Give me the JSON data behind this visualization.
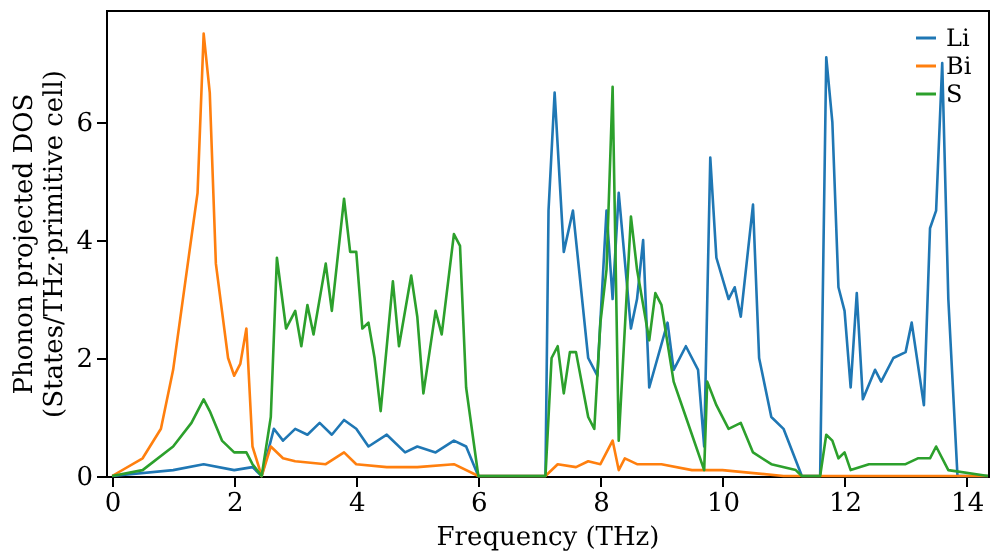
{
  "chart_data": {
    "type": "line",
    "xlabel": "Frequency (THz)",
    "ylabel": "Phonon projected DOS\n(States/THz·primitive cell)",
    "xlim": [
      -0.1,
      14.35
    ],
    "xticks": [
      0,
      2,
      4,
      6,
      8,
      10,
      12,
      14
    ],
    "ylim": [
      0,
      7.9
    ],
    "yticks": [
      0,
      2,
      4,
      6
    ],
    "grid": false,
    "legend": "top right",
    "marker": "none",
    "line_style": "solid",
    "series": [
      {
        "name": "Li",
        "color": "#1f77b4",
        "x": [
          0,
          1,
          1.5,
          2,
          2.3,
          2.45,
          2.65,
          2.8,
          3,
          3.2,
          3.4,
          3.6,
          3.8,
          4,
          4.2,
          4.5,
          4.8,
          5,
          5.3,
          5.6,
          5.8,
          6,
          7.1,
          7.15,
          7.25,
          7.4,
          7.55,
          7.8,
          7.95,
          8.1,
          8.2,
          8.3,
          8.5,
          8.6,
          8.7,
          8.8,
          9.1,
          9.2,
          9.4,
          9.6,
          9.7,
          9.8,
          9.9,
          10.1,
          10.2,
          10.3,
          10.5,
          10.6,
          10.8,
          11.0,
          11.3,
          11.6,
          11.7,
          11.8,
          11.9,
          12.0,
          12.1,
          12.2,
          12.3,
          12.5,
          12.6,
          12.8,
          13.0,
          13.1,
          13.3,
          13.4,
          13.5,
          13.6,
          13.7,
          13.85,
          14.35
        ],
        "values": [
          0,
          0.1,
          0.2,
          0.1,
          0.15,
          0,
          0.8,
          0.6,
          0.8,
          0.7,
          0.9,
          0.7,
          0.95,
          0.8,
          0.5,
          0.7,
          0.4,
          0.5,
          0.4,
          0.6,
          0.5,
          0,
          0,
          4.5,
          6.5,
          3.8,
          4.5,
          2.0,
          1.7,
          4.5,
          3.0,
          4.8,
          2.5,
          3.0,
          4.0,
          1.5,
          2.6,
          1.8,
          2.2,
          1.8,
          0.5,
          5.4,
          3.7,
          3.0,
          3.2,
          2.7,
          4.6,
          2.0,
          1.0,
          0.8,
          0,
          0,
          7.1,
          6.0,
          3.2,
          2.8,
          1.5,
          3.1,
          1.3,
          1.8,
          1.6,
          2.0,
          2.1,
          2.6,
          1.2,
          4.2,
          4.5,
          7.0,
          3.0,
          0,
          0
        ]
      },
      {
        "name": "Bi",
        "color": "#ff7f0e",
        "x": [
          0,
          0.5,
          0.8,
          1,
          1.2,
          1.4,
          1.5,
          1.6,
          1.7,
          1.8,
          1.9,
          2.0,
          2.1,
          2.2,
          2.3,
          2.45,
          2.6,
          2.8,
          3,
          3.5,
          3.8,
          4,
          4.5,
          5,
          5.6,
          6,
          7.1,
          7.3,
          7.6,
          7.8,
          8.0,
          8.2,
          8.3,
          8.4,
          8.6,
          9,
          9.5,
          10,
          11,
          14.35
        ],
        "values": [
          0,
          0.3,
          0.8,
          1.8,
          3.3,
          4.8,
          7.5,
          6.5,
          3.6,
          2.8,
          2.0,
          1.7,
          1.9,
          2.5,
          0.5,
          0,
          0.5,
          0.3,
          0.25,
          0.2,
          0.4,
          0.2,
          0.15,
          0.15,
          0.2,
          0,
          0,
          0.2,
          0.15,
          0.25,
          0.2,
          0.6,
          0.1,
          0.3,
          0.2,
          0.2,
          0.1,
          0.1,
          0,
          0
        ]
      },
      {
        "name": "S",
        "color": "#2ca02c",
        "x": [
          0,
          0.5,
          1,
          1.3,
          1.5,
          1.6,
          1.8,
          2.0,
          2.2,
          2.3,
          2.45,
          2.6,
          2.7,
          2.85,
          3.0,
          3.1,
          3.2,
          3.3,
          3.5,
          3.6,
          3.8,
          3.9,
          4.0,
          4.1,
          4.2,
          4.3,
          4.4,
          4.6,
          4.7,
          4.9,
          5.0,
          5.1,
          5.3,
          5.4,
          5.6,
          5.7,
          5.8,
          6.0,
          7.1,
          7.2,
          7.3,
          7.4,
          7.5,
          7.6,
          7.8,
          7.9,
          8.0,
          8.1,
          8.2,
          8.3,
          8.5,
          8.6,
          8.8,
          8.9,
          9.0,
          9.2,
          9.4,
          9.7,
          9.75,
          9.9,
          10.1,
          10.3,
          10.5,
          10.8,
          11.2,
          11.3,
          11.6,
          11.7,
          11.8,
          11.9,
          12.0,
          12.1,
          12.4,
          13,
          13.2,
          13.4,
          13.5,
          13.7,
          14.35
        ],
        "values": [
          0,
          0.1,
          0.5,
          0.9,
          1.3,
          1.1,
          0.6,
          0.4,
          0.4,
          0.2,
          0,
          1.0,
          3.7,
          2.5,
          2.8,
          2.2,
          2.9,
          2.4,
          3.6,
          2.8,
          4.7,
          3.8,
          3.8,
          2.5,
          2.6,
          2.0,
          1.1,
          3.3,
          2.2,
          3.4,
          2.7,
          1.4,
          2.8,
          2.4,
          4.1,
          3.9,
          1.5,
          0,
          0,
          2.0,
          2.2,
          1.4,
          2.1,
          2.1,
          1.0,
          0.8,
          2.6,
          3.5,
          6.6,
          0.6,
          4.4,
          3.5,
          2.3,
          3.1,
          2.9,
          1.6,
          1.0,
          0.1,
          1.6,
          1.2,
          0.8,
          0.9,
          0.4,
          0.2,
          0.1,
          0,
          0,
          0.7,
          0.6,
          0.3,
          0.4,
          0.1,
          0.2,
          0.2,
          0.3,
          0.3,
          0.5,
          0.1,
          0
        ]
      }
    ]
  }
}
